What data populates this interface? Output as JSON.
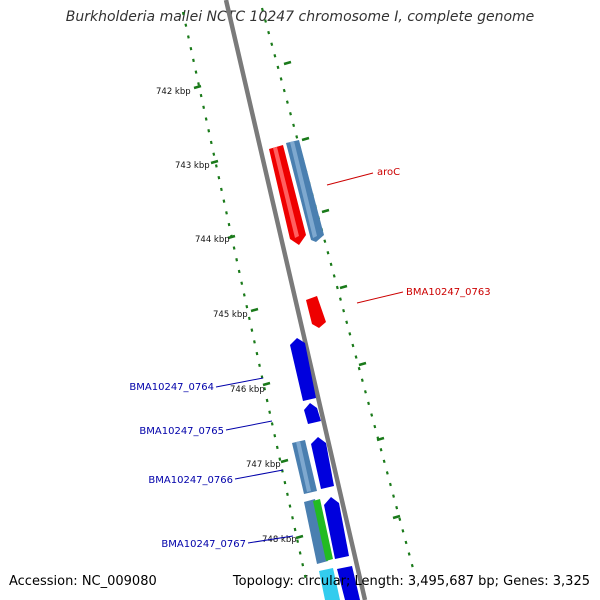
{
  "title": "Burkholderia mallei NCTC 10247 chromosome I, complete genome",
  "accession": "Accession: NC_009080",
  "summary": "Topology: circular; Length: 3,495,687 bp; Genes: 3,325",
  "tick_labels": [
    "742 kbp",
    "743 kbp",
    "744 kbp",
    "745 kbp",
    "746 kbp",
    "747 kbp",
    "748 kbp"
  ],
  "gene_labels": {
    "aroC": "aroC",
    "bma0763": "BMA10247_0763",
    "bma0764": "BMA10247_0764",
    "bma0765": "BMA10247_0765",
    "bma0766": "BMA10247_0766",
    "bma0767": "BMA10247_0767"
  },
  "colors": {
    "backbone": "#808080",
    "tick": "#1a7a1a",
    "gene_red": "#ee0000",
    "gene_blue": "#0000dd",
    "gene_steel": "#4a7fb0",
    "gene_green": "#22bb22",
    "gene_cyan": "#33ccee",
    "label_red": "#cc0000",
    "label_blue": "#0000aa"
  }
}
